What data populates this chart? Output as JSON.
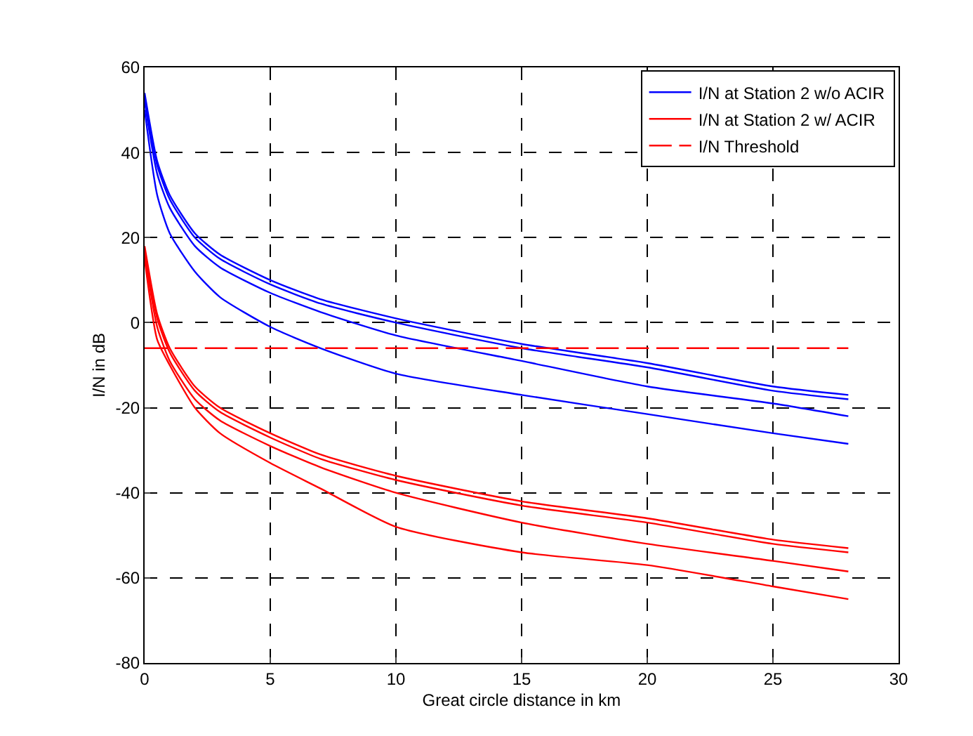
{
  "chart_data": {
    "type": "line",
    "xlabel": "Great circle distance in km",
    "ylabel": "I/N in dB",
    "x": [
      0,
      0.5,
      1,
      2,
      3,
      5,
      7,
      10,
      15,
      20,
      25,
      28
    ],
    "series": [
      {
        "name": "I/N at Station 2 w/o ACIR",
        "color": "#0000ff",
        "values": [
          54,
          38,
          30,
          21,
          16,
          10,
          5.5,
          1,
          -5,
          -9.5,
          -15,
          -17
        ]
      },
      {
        "color": "#0000ff",
        "values": [
          53,
          37,
          29,
          20,
          15,
          9,
          4.5,
          0,
          -6,
          -10.5,
          -16,
          -18
        ]
      },
      {
        "color": "#0000ff",
        "values": [
          52,
          35,
          27,
          18,
          13,
          7,
          2.5,
          -3,
          -9,
          -15,
          -19,
          -22
        ]
      },
      {
        "color": "#0000ff",
        "values": [
          50,
          30,
          21,
          12,
          6,
          -1,
          -6,
          -12,
          -17,
          -21.5,
          -26,
          -28.5
        ]
      },
      {
        "name": "I/N at Station 2 w/ ACIR",
        "color": "#ff0000",
        "values": [
          18,
          2,
          -6,
          -15,
          -20,
          -26,
          -31,
          -36,
          -42,
          -46,
          -51,
          -53
        ]
      },
      {
        "color": "#ff0000",
        "values": [
          17,
          1,
          -7,
          -16,
          -21,
          -27,
          -32,
          -37,
          -43,
          -47,
          -52,
          -54
        ]
      },
      {
        "color": "#ff0000",
        "values": [
          16,
          -1,
          -9,
          -18,
          -23,
          -29,
          -34,
          -40,
          -47,
          -52,
          -56,
          -58.5
        ]
      },
      {
        "color": "#ff0000",
        "values": [
          15,
          -4,
          -10,
          -20,
          -26,
          -33,
          -39,
          -48,
          -54,
          -57,
          -62,
          -65
        ]
      },
      {
        "name": "I/N Threshold",
        "color": "#ff0000",
        "line_style": "dashed",
        "x": [
          0,
          28
        ],
        "values": [
          -6,
          -6
        ]
      }
    ],
    "xlim": [
      0,
      30
    ],
    "xticks": [
      0,
      5,
      10,
      15,
      20,
      25,
      30
    ],
    "ylim": [
      -80,
      60
    ],
    "yticks": [
      -80,
      -60,
      -40,
      -20,
      0,
      20,
      40,
      60
    ],
    "grid": true,
    "legend": "top right",
    "line_style": "solid",
    "marker": "none"
  }
}
